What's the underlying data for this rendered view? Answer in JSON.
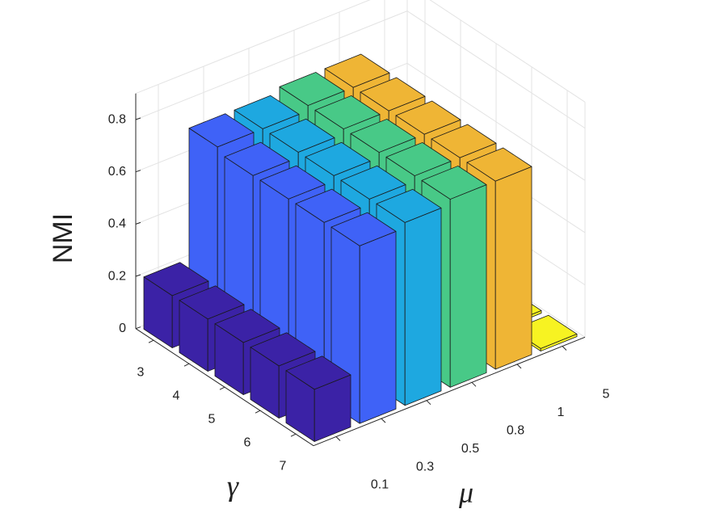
{
  "chart_data": {
    "type": "bar3",
    "zlabel": "NMI",
    "xlabel": "γ",
    "ylabel": "μ",
    "x_categories": [
      "3",
      "4",
      "5",
      "6",
      "7"
    ],
    "y_categories": [
      "0.1",
      "0.3",
      "0.5",
      "0.8",
      "1",
      "5"
    ],
    "values": [
      [
        0.2,
        0.2,
        0.2,
        0.2,
        0.2
      ],
      [
        0.7,
        0.68,
        0.68,
        0.68,
        0.68
      ],
      [
        0.7,
        0.7,
        0.7,
        0.7,
        0.7
      ],
      [
        0.72,
        0.72,
        0.72,
        0.72,
        0.72
      ],
      [
        0.72,
        0.72,
        0.72,
        0.72,
        0.72
      ],
      [
        0.01,
        0.01,
        0.01,
        0.01,
        0.01
      ]
    ],
    "colors": [
      "#3b22a6",
      "#3f62f7",
      "#1ea8e0",
      "#48c987",
      "#efb535",
      "#f7f322"
    ],
    "zlim": [
      0,
      0.9
    ],
    "zticks": [
      0,
      0.2,
      0.4,
      0.6,
      0.8
    ],
    "grid": true
  }
}
